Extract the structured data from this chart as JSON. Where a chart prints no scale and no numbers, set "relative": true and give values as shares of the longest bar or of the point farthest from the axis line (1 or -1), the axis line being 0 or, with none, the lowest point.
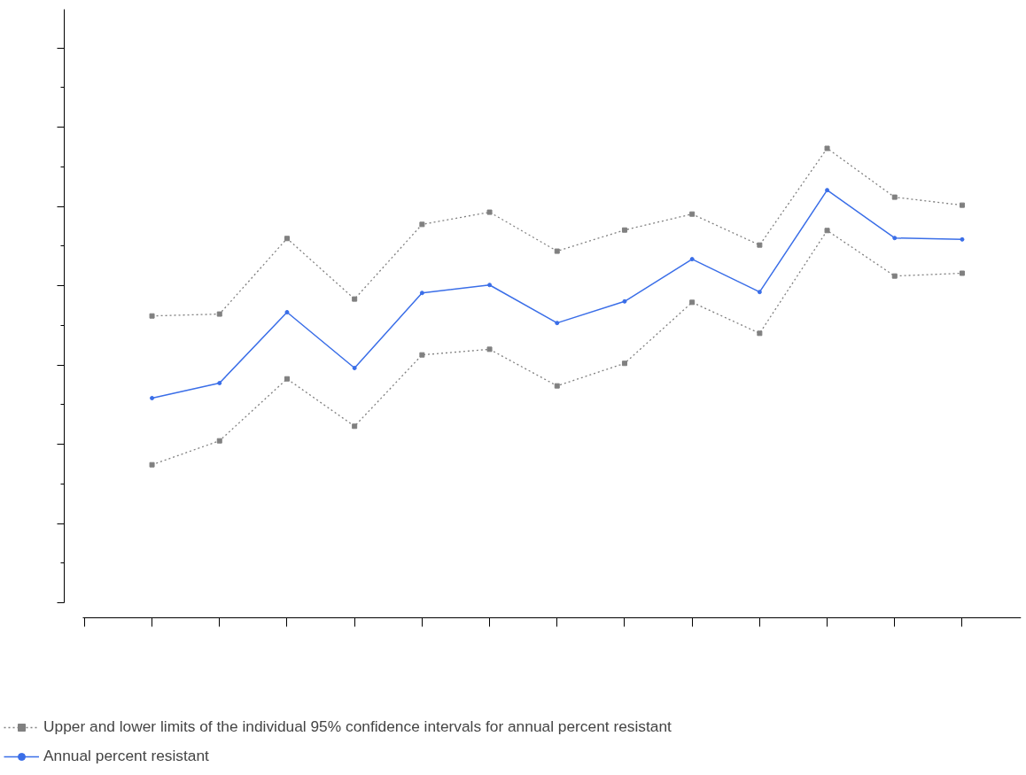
{
  "chart_data": {
    "type": "line",
    "relative": true,
    "categories": [
      null,
      null,
      null,
      null,
      null,
      null,
      null,
      null,
      null,
      null,
      null,
      null,
      null
    ],
    "series": [
      {
        "name": "Upper and lower limits of the individual 95% confidence intervals for annual percent resistant",
        "color": "#808080",
        "line_style": "dashed",
        "marker": "square",
        "values": [
          0.643,
          0.647,
          0.808,
          0.679,
          0.838,
          0.864,
          0.781,
          0.826,
          0.86,
          0.794,
          1,
          0.896,
          0.879
        ]
      },
      {
        "color": "#808080",
        "line_style": "dashed",
        "marker": "square",
        "values": [
          0.326,
          0.377,
          0.509,
          0.408,
          0.56,
          0.572,
          0.494,
          0.542,
          0.672,
          0.606,
          0.825,
          0.728,
          0.734
        ]
      },
      {
        "name": "Annual percent resistant",
        "color": "#3a6ee8",
        "line_style": "solid",
        "marker": "circle",
        "values": [
          0.468,
          0.5,
          0.651,
          0.532,
          0.692,
          0.709,
          0.628,
          0.674,
          0.764,
          0.694,
          0.911,
          0.809,
          0.806
        ]
      }
    ],
    "legend": "bottom"
  }
}
